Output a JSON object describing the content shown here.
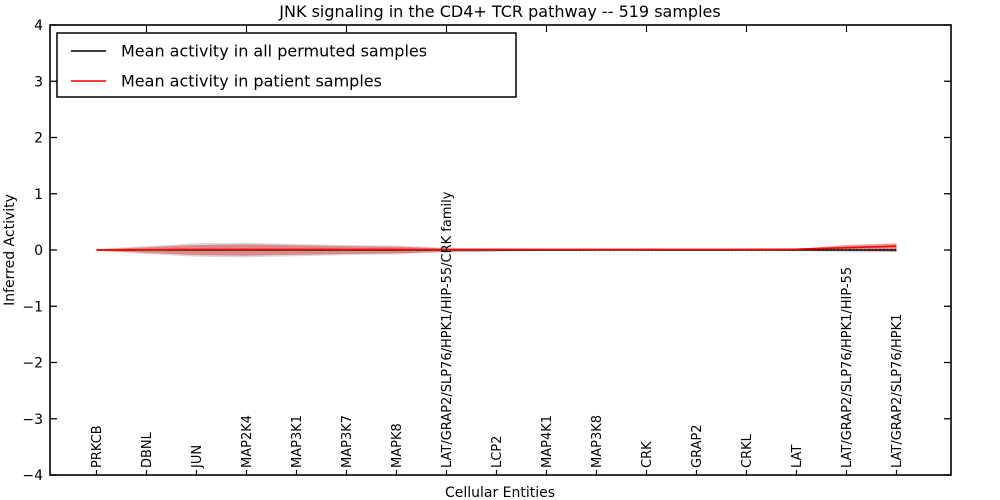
{
  "title": "JNK signaling in the CD4+ TCR pathway -- 519 samples",
  "legend": {
    "position": "upper left",
    "entries": [
      {
        "label": "Mean activity in all permuted samples",
        "color": "#000000"
      },
      {
        "label": "Mean activity in patient samples",
        "color": "#ff0000"
      }
    ]
  },
  "chart_data": {
    "type": "line",
    "title": "JNK signaling in the CD4+ TCR pathway -- 519 samples",
    "xlabel": "Cellular Entities",
    "ylabel": "Inferred Activity",
    "ylim": [
      -4,
      4
    ],
    "ytick_labels": [
      "4",
      "3",
      "2",
      "1",
      "0",
      "−1",
      "−2",
      "−3",
      "−4"
    ],
    "ytick_values": [
      4,
      3,
      2,
      1,
      0,
      -1,
      -2,
      -3,
      -4
    ],
    "grid": false,
    "zero_line": {
      "style": "dotted",
      "color": "#000000"
    },
    "categories": [
      "PRKCB",
      "DBNL",
      "JUN",
      "MAP2K4",
      "MAP3K1",
      "MAP3K7",
      "MAPK8",
      "LAT/GRAP2/SLP76/HPK1/HIP-55/CRK family",
      "LCP2",
      "MAP4K1",
      "MAP3K8",
      "CRK",
      "GRAP2",
      "CRKL",
      "LAT",
      "LAT/GRAP2/SLP76/HPK1/HIP-55",
      "LAT/GRAP2/SLP76/HPK1"
    ],
    "series": [
      {
        "name": "Mean activity in all permuted samples",
        "color": "#000000",
        "style": "solid",
        "width": 1.2,
        "values": [
          0,
          0,
          0,
          0,
          0,
          0,
          0,
          0,
          0,
          0,
          0,
          0,
          0,
          0,
          0,
          0,
          0
        ]
      },
      {
        "name": "zero reference",
        "color": "#000000",
        "style": "dotted",
        "width": 1.4,
        "values": [
          0,
          0,
          0,
          0,
          0,
          0,
          0,
          0,
          0,
          0,
          0,
          0,
          0,
          0,
          0,
          0,
          0
        ]
      },
      {
        "name": "Mean activity in patient samples",
        "color": "#ff0000",
        "style": "solid",
        "width": 1.6,
        "values": [
          0.0,
          0.005,
          0.01,
          0.01,
          0.01,
          0.01,
          0.01,
          0.005,
          0.01,
          0.01,
          0.01,
          0.01,
          0.01,
          0.01,
          0.015,
          0.04,
          0.07
        ]
      }
    ],
    "bands": [
      {
        "name": "permuted samples spread",
        "color": "rgba(130,130,130,0.30)",
        "upper": [
          0.02,
          0.07,
          0.12,
          0.13,
          0.11,
          0.09,
          0.08,
          0.04,
          0.03,
          0.02,
          0.015,
          0.015,
          0.02,
          0.015,
          0.02,
          0.07,
          0.08
        ],
        "lower": [
          -0.02,
          -0.07,
          -0.12,
          -0.13,
          -0.11,
          -0.09,
          -0.08,
          -0.04,
          -0.03,
          -0.02,
          -0.015,
          -0.015,
          -0.02,
          -0.015,
          -0.02,
          -0.04,
          -0.04
        ]
      },
      {
        "name": "patient samples spread",
        "color": "rgba(222,28,28,0.42)",
        "upper": [
          0.01,
          0.05,
          0.09,
          0.1,
          0.085,
          0.07,
          0.06,
          0.03,
          0.022,
          0.015,
          0.012,
          0.012,
          0.015,
          0.012,
          0.02,
          0.09,
          0.12
        ],
        "lower": [
          -0.01,
          -0.05,
          -0.09,
          -0.1,
          -0.085,
          -0.07,
          -0.06,
          -0.03,
          -0.022,
          -0.015,
          -0.012,
          -0.012,
          -0.015,
          -0.012,
          -0.01,
          -0.01,
          -0.03
        ]
      }
    ]
  }
}
